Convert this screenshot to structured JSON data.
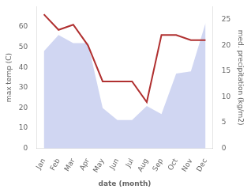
{
  "chart_data": {
    "type": "line",
    "xlabel": "date (month)",
    "ylabel": "max temp (C)",
    "y2label": "med. precipitation (kg/m2)",
    "categories": [
      "Jan",
      "Feb",
      "Mar",
      "Apr",
      "May",
      "Jun",
      "Jul",
      "Aug",
      "Sep",
      "Oct",
      "Nov",
      "Dec"
    ],
    "series": [
      {
        "type": "area",
        "color": "#aab4e8",
        "values": [
          48,
          56,
          52,
          52,
          20,
          14,
          14,
          21,
          17,
          37,
          38,
          62
        ]
      },
      {
        "type": "line",
        "color": "#b03030",
        "axis": "y2",
        "values": [
          26,
          23,
          24,
          20,
          13,
          13,
          13,
          9,
          22,
          22,
          21,
          21
        ]
      }
    ],
    "ylim": [
      0,
      70
    ],
    "yticks": [
      0,
      10,
      20,
      30,
      40,
      50,
      60
    ],
    "y2lim": [
      0,
      27.5
    ],
    "y2ticks": [
      0,
      5,
      10,
      15,
      20,
      25
    ],
    "grid": false
  }
}
